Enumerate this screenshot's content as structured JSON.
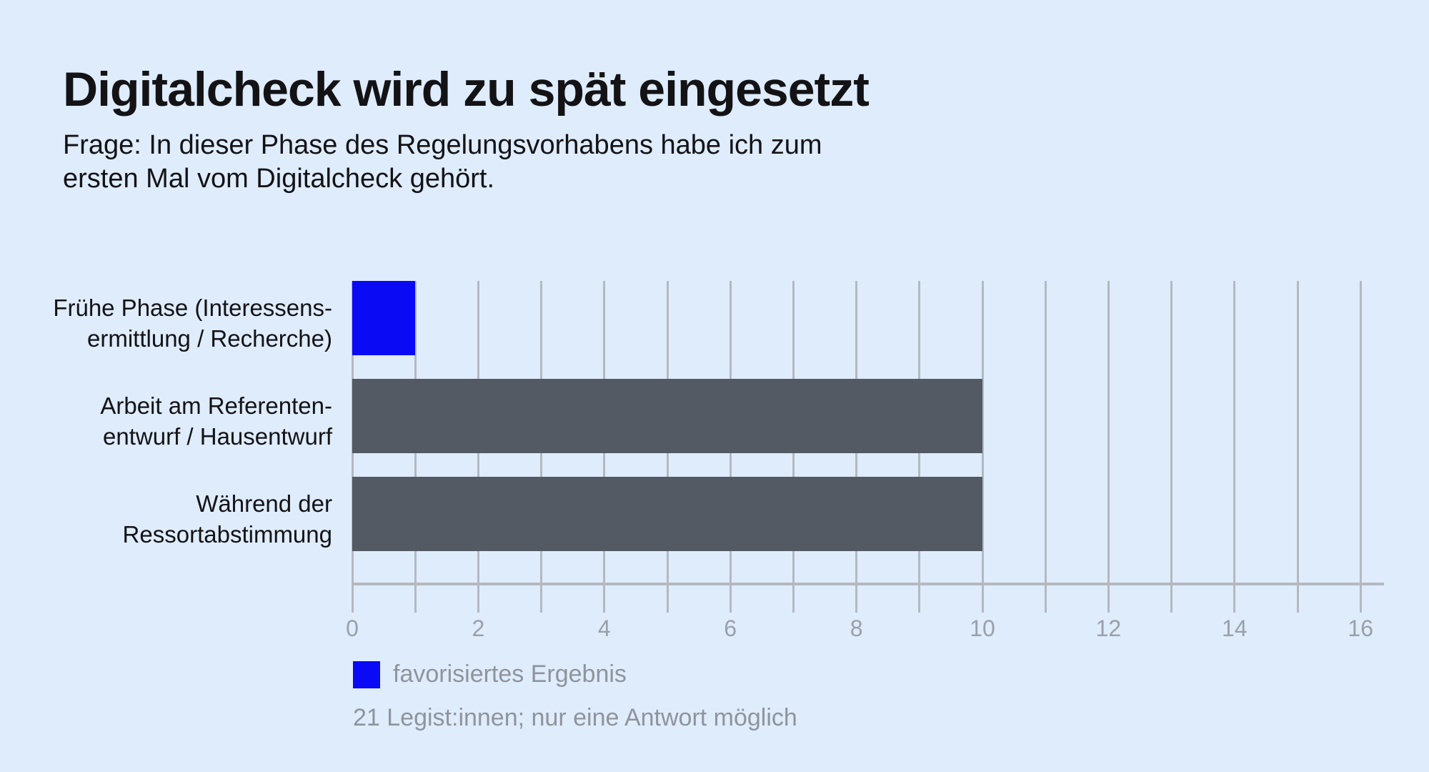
{
  "chart_data": {
    "type": "bar",
    "orientation": "horizontal",
    "title": "Digitalcheck wird zu spät eingesetzt",
    "subtitle_lines": [
      "Frage: In dieser Phase des Regelungsvorhabens habe ich zum",
      "ersten Mal vom Digitalcheck gehört."
    ],
    "categories": [
      "Frühe Phase (Interessensermittlung / Recherche)",
      "Arbeit am Referentenentwurf / Hausentwurf",
      "Während der Ressortabstimmung"
    ],
    "category_label_lines": [
      [
        "Frühe Phase (Interessens-",
        "ermittlung / Recherche)"
      ],
      [
        "Arbeit am Referenten-",
        "entwurf / Hausentwurf"
      ],
      [
        "Während der",
        "Ressortabstimmung"
      ]
    ],
    "values": [
      1,
      10,
      10
    ],
    "highlighted": [
      true,
      false,
      false
    ],
    "xlim": [
      0,
      16
    ],
    "x_tick_labels": [
      0,
      2,
      4,
      6,
      8,
      10,
      12,
      14,
      16
    ],
    "gridline_interval": 1,
    "grid": true,
    "legend": {
      "label": "favorisiertes Ergebnis",
      "position": "bottom-left"
    },
    "footnote": "21 Legist:innen; nur eine Antwort möglich"
  },
  "colors": {
    "background": "#dfecfc",
    "highlight_bar": "#0a0af5",
    "default_bar": "#535a63",
    "grid_line": "#b4b9c0",
    "tick_label": "#9aa0a8",
    "muted_text": "#8f949c",
    "text": "#131316"
  }
}
